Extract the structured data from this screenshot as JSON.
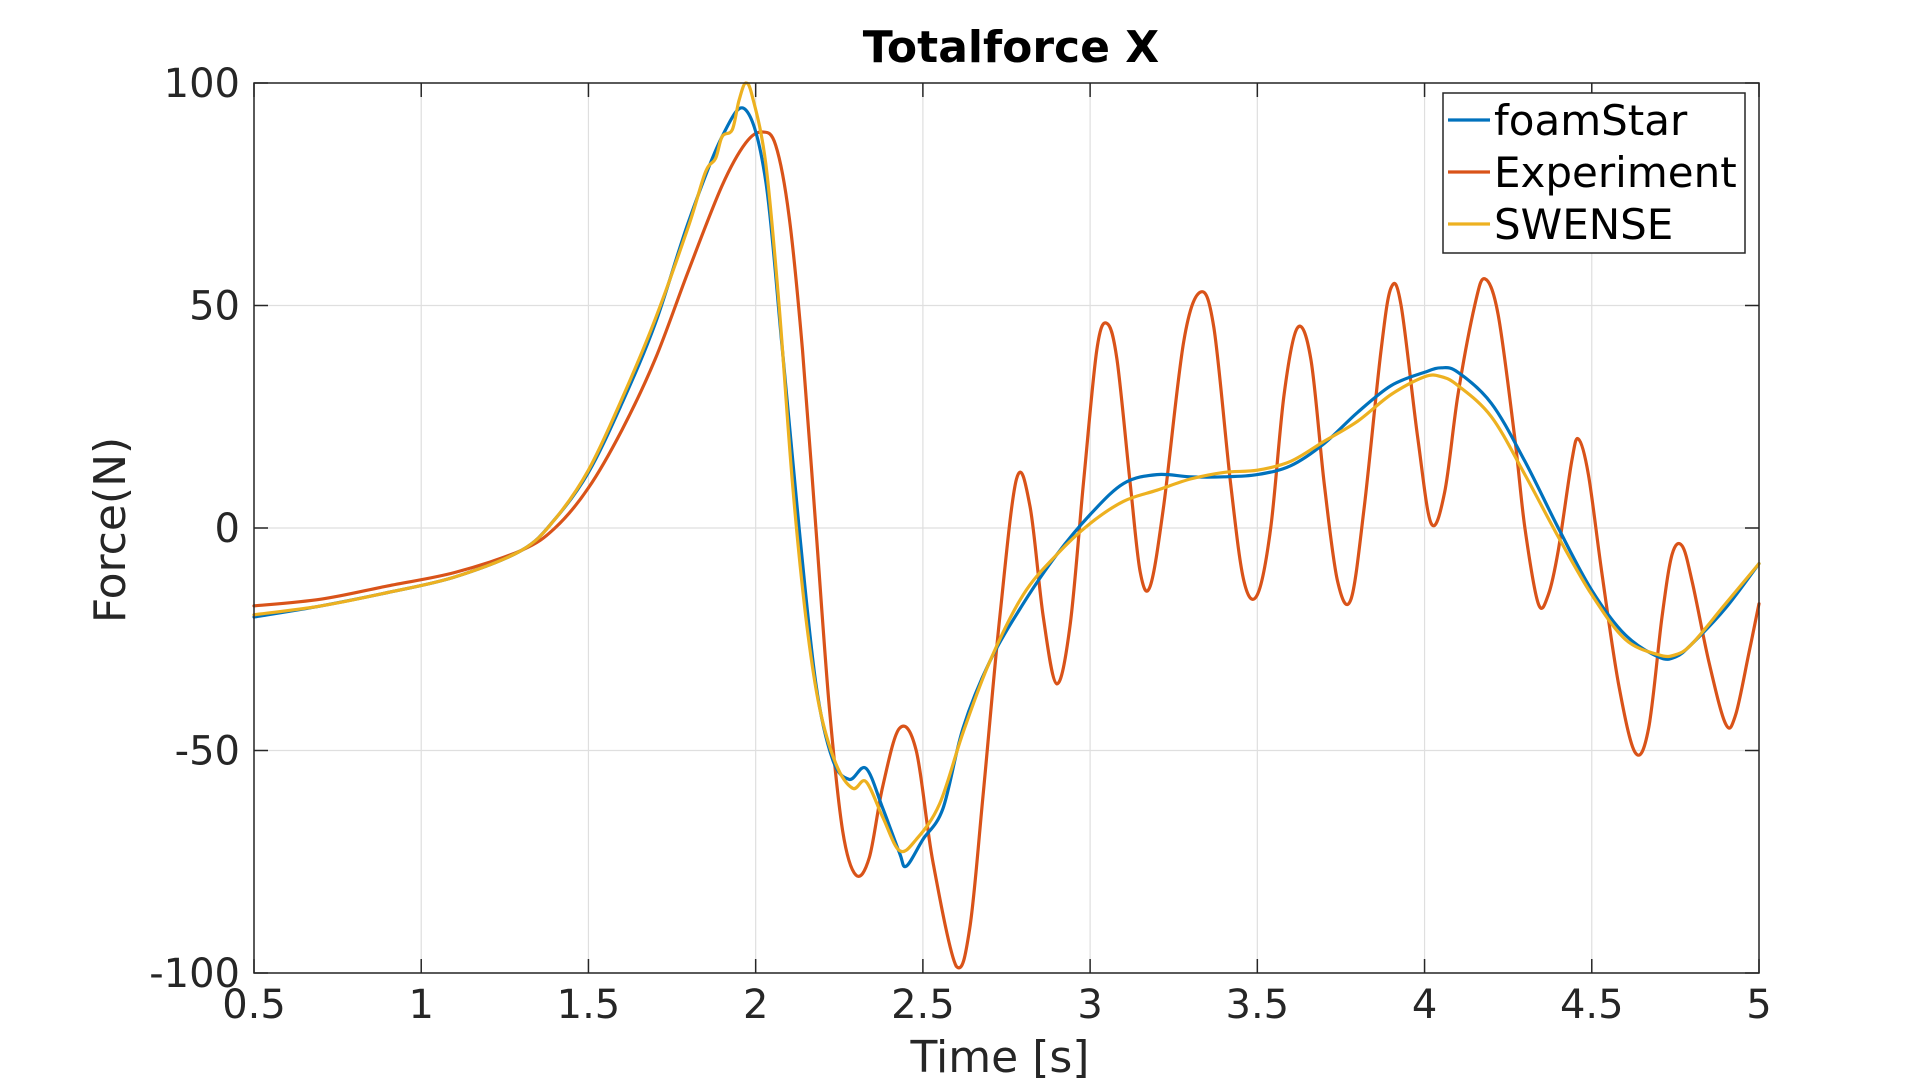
{
  "chart_data": {
    "type": "line",
    "title": "Totalforce X",
    "xlabel": "Time [s]",
    "ylabel": "Force(N)",
    "xlim": [
      0.5,
      5
    ],
    "ylim": [
      -100,
      100
    ],
    "xticks": [
      0.5,
      1,
      1.5,
      2,
      2.5,
      3,
      3.5,
      4,
      4.5,
      5
    ],
    "xtick_labels": [
      "0.5",
      "1",
      "1.5",
      "2",
      "2.5",
      "3",
      "3.5",
      "4",
      "4.5",
      "5"
    ],
    "yticks": [
      -100,
      -50,
      0,
      50,
      100
    ],
    "ytick_labels": [
      "-100",
      "-50",
      "0",
      "50",
      "100"
    ],
    "grid": true,
    "legend_position": "top-right",
    "series": [
      {
        "name": "foamStar",
        "color": "#0072BD",
        "points": [
          [
            0.5,
            -20
          ],
          [
            0.7,
            -17.5
          ],
          [
            0.9,
            -14.5
          ],
          [
            1.1,
            -11
          ],
          [
            1.3,
            -5
          ],
          [
            1.4,
            2
          ],
          [
            1.5,
            12.5
          ],
          [
            1.6,
            28
          ],
          [
            1.7,
            46
          ],
          [
            1.8,
            69
          ],
          [
            1.9,
            88
          ],
          [
            1.97,
            94
          ],
          [
            2.03,
            78
          ],
          [
            2.08,
            40
          ],
          [
            2.13,
            0
          ],
          [
            2.18,
            -35
          ],
          [
            2.23,
            -52
          ],
          [
            2.28,
            -56.5
          ],
          [
            2.33,
            -54
          ],
          [
            2.38,
            -63
          ],
          [
            2.43,
            -73
          ],
          [
            2.45,
            -76
          ],
          [
            2.5,
            -70
          ],
          [
            2.56,
            -63
          ],
          [
            2.62,
            -45
          ],
          [
            2.7,
            -30
          ],
          [
            2.8,
            -17
          ],
          [
            2.9,
            -6
          ],
          [
            3.0,
            3
          ],
          [
            3.1,
            10
          ],
          [
            3.2,
            12
          ],
          [
            3.3,
            11.5
          ],
          [
            3.4,
            11.5
          ],
          [
            3.5,
            12
          ],
          [
            3.6,
            14
          ],
          [
            3.7,
            19
          ],
          [
            3.8,
            26
          ],
          [
            3.9,
            32
          ],
          [
            4.0,
            35
          ],
          [
            4.05,
            36
          ],
          [
            4.1,
            35
          ],
          [
            4.2,
            28
          ],
          [
            4.3,
            15
          ],
          [
            4.4,
            0
          ],
          [
            4.5,
            -14
          ],
          [
            4.6,
            -24
          ],
          [
            4.7,
            -29
          ],
          [
            4.75,
            -29
          ],
          [
            4.8,
            -26
          ],
          [
            4.9,
            -18
          ],
          [
            5.0,
            -8
          ]
        ]
      },
      {
        "name": "Experiment",
        "color": "#D95319",
        "points": [
          [
            0.5,
            -17.5
          ],
          [
            0.7,
            -16
          ],
          [
            0.9,
            -13
          ],
          [
            1.1,
            -10
          ],
          [
            1.3,
            -5
          ],
          [
            1.4,
            0
          ],
          [
            1.5,
            9
          ],
          [
            1.6,
            22
          ],
          [
            1.7,
            38
          ],
          [
            1.8,
            58
          ],
          [
            1.9,
            77
          ],
          [
            1.97,
            86.5
          ],
          [
            2.02,
            89
          ],
          [
            2.06,
            86
          ],
          [
            2.1,
            70
          ],
          [
            2.14,
            40
          ],
          [
            2.18,
            0
          ],
          [
            2.22,
            -40
          ],
          [
            2.26,
            -68
          ],
          [
            2.3,
            -78
          ],
          [
            2.34,
            -74
          ],
          [
            2.38,
            -58
          ],
          [
            2.43,
            -45
          ],
          [
            2.48,
            -50
          ],
          [
            2.53,
            -75
          ],
          [
            2.6,
            -98.5
          ],
          [
            2.64,
            -90
          ],
          [
            2.68,
            -60
          ],
          [
            2.73,
            -20
          ],
          [
            2.78,
            11
          ],
          [
            2.82,
            5
          ],
          [
            2.86,
            -20
          ],
          [
            2.9,
            -35
          ],
          [
            2.94,
            -22
          ],
          [
            2.98,
            10
          ],
          [
            3.02,
            40
          ],
          [
            3.05,
            46
          ],
          [
            3.08,
            38
          ],
          [
            3.12,
            10
          ],
          [
            3.15,
            -10
          ],
          [
            3.18,
            -13
          ],
          [
            3.22,
            5
          ],
          [
            3.28,
            42
          ],
          [
            3.33,
            53
          ],
          [
            3.37,
            45
          ],
          [
            3.42,
            10
          ],
          [
            3.46,
            -12
          ],
          [
            3.5,
            -15
          ],
          [
            3.54,
            0
          ],
          [
            3.58,
            30
          ],
          [
            3.62,
            45
          ],
          [
            3.66,
            38
          ],
          [
            3.7,
            10
          ],
          [
            3.74,
            -12
          ],
          [
            3.78,
            -16
          ],
          [
            3.82,
            5
          ],
          [
            3.87,
            40
          ],
          [
            3.9,
            54
          ],
          [
            3.93,
            50
          ],
          [
            3.98,
            20
          ],
          [
            4.02,
            1
          ],
          [
            4.06,
            8
          ],
          [
            4.1,
            30
          ],
          [
            4.15,
            50
          ],
          [
            4.18,
            56
          ],
          [
            4.22,
            48
          ],
          [
            4.27,
            20
          ],
          [
            4.3,
            0
          ],
          [
            4.34,
            -17
          ],
          [
            4.37,
            -15
          ],
          [
            4.4,
            -5
          ],
          [
            4.44,
            15
          ],
          [
            4.46,
            20
          ],
          [
            4.49,
            12
          ],
          [
            4.53,
            -10
          ],
          [
            4.58,
            -35
          ],
          [
            4.63,
            -50.5
          ],
          [
            4.67,
            -45
          ],
          [
            4.71,
            -20
          ],
          [
            4.74,
            -6
          ],
          [
            4.77,
            -4
          ],
          [
            4.8,
            -12
          ],
          [
            4.85,
            -30
          ],
          [
            4.9,
            -44
          ],
          [
            4.93,
            -42
          ],
          [
            4.97,
            -28
          ],
          [
            5.0,
            -17
          ]
        ]
      },
      {
        "name": "SWENSE",
        "color": "#EDB120",
        "points": [
          [
            0.5,
            -19.5
          ],
          [
            0.7,
            -17.5
          ],
          [
            0.9,
            -14.5
          ],
          [
            1.1,
            -11
          ],
          [
            1.3,
            -5
          ],
          [
            1.4,
            2
          ],
          [
            1.5,
            13
          ],
          [
            1.6,
            29
          ],
          [
            1.7,
            47
          ],
          [
            1.8,
            68
          ],
          [
            1.85,
            80
          ],
          [
            1.88,
            83
          ],
          [
            1.9,
            88
          ],
          [
            1.93,
            89.5
          ],
          [
            1.95,
            96
          ],
          [
            1.97,
            100
          ],
          [
            1.99,
            97
          ],
          [
            2.03,
            82
          ],
          [
            2.07,
            50
          ],
          [
            2.11,
            10
          ],
          [
            2.15,
            -20
          ],
          [
            2.19,
            -40
          ],
          [
            2.24,
            -53
          ],
          [
            2.29,
            -58.5
          ],
          [
            2.33,
            -57
          ],
          [
            2.38,
            -65
          ],
          [
            2.43,
            -72.5
          ],
          [
            2.48,
            -70
          ],
          [
            2.55,
            -62
          ],
          [
            2.62,
            -46
          ],
          [
            2.7,
            -30
          ],
          [
            2.8,
            -15
          ],
          [
            2.9,
            -6
          ],
          [
            3.0,
            1
          ],
          [
            3.1,
            6
          ],
          [
            3.2,
            8.5
          ],
          [
            3.3,
            11
          ],
          [
            3.4,
            12.5
          ],
          [
            3.5,
            13
          ],
          [
            3.6,
            15
          ],
          [
            3.7,
            19.5
          ],
          [
            3.8,
            24
          ],
          [
            3.9,
            30
          ],
          [
            4.0,
            34
          ],
          [
            4.05,
            34
          ],
          [
            4.1,
            32
          ],
          [
            4.2,
            25
          ],
          [
            4.3,
            12
          ],
          [
            4.4,
            -2
          ],
          [
            4.5,
            -15
          ],
          [
            4.6,
            -25
          ],
          [
            4.7,
            -28.5
          ],
          [
            4.75,
            -28.5
          ],
          [
            4.8,
            -26
          ],
          [
            4.9,
            -17
          ],
          [
            5.0,
            -8
          ]
        ]
      }
    ]
  }
}
